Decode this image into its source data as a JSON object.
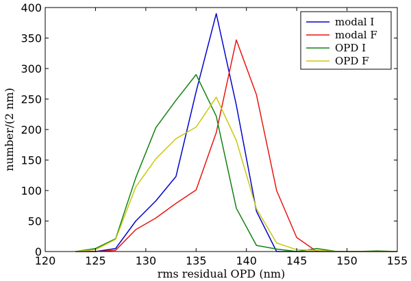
{
  "chart_data": {
    "type": "line",
    "title": "",
    "xlabel": "rms residual OPD (nm)",
    "ylabel": "number/(2 nm)",
    "xlim": [
      120,
      155
    ],
    "ylim": [
      0,
      400
    ],
    "xticks": [
      120,
      125,
      130,
      135,
      140,
      145,
      150,
      155
    ],
    "yticks": [
      0,
      50,
      100,
      150,
      200,
      250,
      300,
      350,
      400
    ],
    "grid": false,
    "legend_position": "top-right",
    "x": [
      123,
      125,
      127,
      129,
      131,
      133,
      135,
      137,
      139,
      141,
      143,
      145,
      147,
      149,
      151,
      153,
      155
    ],
    "series": [
      {
        "name": "modal I",
        "color": "#0000cc",
        "values": [
          0,
          0,
          5,
          50,
          83,
          123,
          262,
          390,
          240,
          66,
          0,
          0,
          0,
          0,
          0,
          0,
          0
        ]
      },
      {
        "name": "modal F",
        "color": "#e8140e",
        "values": [
          0,
          0,
          2,
          36,
          55,
          79,
          101,
          195,
          347,
          257,
          100,
          23,
          0,
          0,
          0,
          0,
          0
        ]
      },
      {
        "name": "OPD I",
        "color": "#118011",
        "values": [
          0,
          5,
          21,
          121,
          203,
          248,
          290,
          222,
          71,
          10,
          4,
          0,
          5,
          0,
          0,
          1,
          0
        ]
      },
      {
        "name": "OPD F",
        "color": "#c8c810",
        "values": [
          0,
          3,
          20,
          106,
          152,
          185,
          204,
          253,
          182,
          70,
          14,
          3,
          2,
          0,
          0,
          0,
          0
        ]
      }
    ]
  }
}
